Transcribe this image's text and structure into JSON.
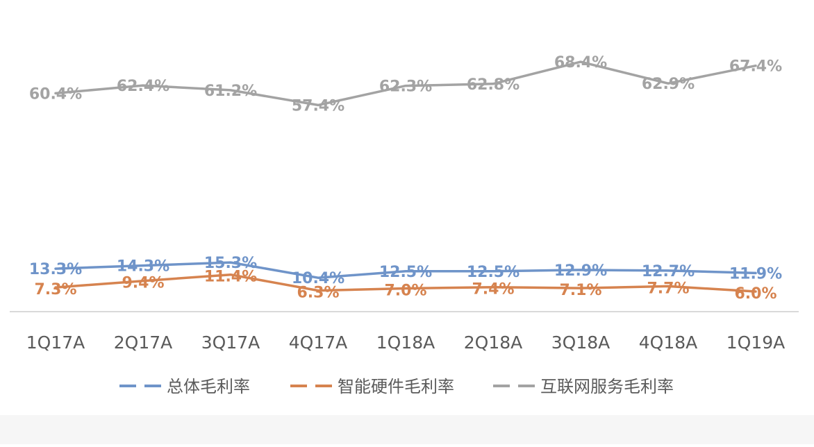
{
  "chart_data": {
    "type": "line",
    "title": "",
    "xlabel": "",
    "ylabel": "",
    "ylim": [
      0,
      80
    ],
    "grid": false,
    "legend_position": "bottom",
    "categories": [
      "1Q17A",
      "2Q17A",
      "3Q17A",
      "4Q17A",
      "1Q18A",
      "2Q18A",
      "3Q18A",
      "4Q18A",
      "1Q19A"
    ],
    "series": [
      {
        "name": "总体毛利率",
        "color": "#6f94c9",
        "values": [
          13.3,
          14.3,
          15.3,
          10.4,
          12.5,
          12.5,
          12.9,
          12.7,
          11.9
        ],
        "labels": [
          "13.3%",
          "14.3%",
          "15.3%",
          "10.4%",
          "12.5%",
          "12.5%",
          "12.9%",
          "12.7%",
          "11.9%"
        ]
      },
      {
        "name": "智能硬件毛利率",
        "color": "#d6834f",
        "values": [
          7.3,
          9.4,
          11.4,
          6.3,
          7.0,
          7.4,
          7.1,
          7.7,
          6.0
        ],
        "labels": [
          "7.3%",
          "9.4%",
          "11.4%",
          "6.3%",
          "7.0%",
          "7.4%",
          "7.1%",
          "7.7%",
          "6.0%"
        ]
      },
      {
        "name": "互联网服务毛利率",
        "color": "#a3a3a3",
        "values": [
          60.4,
          62.4,
          61.2,
          57.4,
          62.3,
          62.8,
          68.4,
          62.9,
          67.4
        ],
        "labels": [
          "60.4%",
          "62.4%",
          "61.2%",
          "57.4%",
          "62.3%",
          "62.8%",
          "68.4%",
          "62.9%",
          "67.4%"
        ]
      }
    ]
  }
}
